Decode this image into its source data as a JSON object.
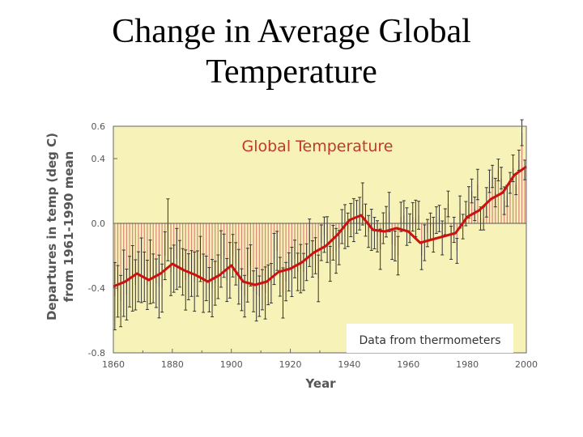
{
  "slide": {
    "title_line1": "Change in Average Global",
    "title_line2": "Temperature"
  },
  "colors": {
    "plot_bg": "#f7f2b8",
    "outer_bg": "#ffffff",
    "bar": "#d9837a",
    "smooth_line": "#cc1111",
    "error_bar": "#333333",
    "title_text": "#c0392b",
    "axis_text": "#555555"
  },
  "chart_data": {
    "type": "bar",
    "title": "Global Temperature",
    "xlabel": "Year",
    "ylabel_line1": "Departures in temp (deg C)",
    "ylabel_line2": "from 1961-1990 mean",
    "annotation": "Data from thermometers",
    "xlim": [
      1860,
      2000
    ],
    "ylim": [
      -0.8,
      0.6
    ],
    "x_ticks": [
      "1860",
      "1880",
      "1900",
      "1920",
      "1940",
      "1960",
      "1980",
      "2000"
    ],
    "y_ticks": [
      "0.6",
      "0.4",
      "0.0",
      "-0.4",
      "-0.8"
    ],
    "y_tick_values": [
      0.6,
      0.4,
      0.0,
      -0.4,
      -0.8
    ],
    "grid": false,
    "smoothed_series": {
      "name": "Smoothed trend",
      "x": [
        1860,
        1864,
        1868,
        1872,
        1876,
        1880,
        1884,
        1888,
        1892,
        1896,
        1900,
        1904,
        1908,
        1912,
        1916,
        1920,
        1924,
        1928,
        1932,
        1936,
        1940,
        1944,
        1948,
        1952,
        1956,
        1960,
        1964,
        1968,
        1972,
        1976,
        1980,
        1984,
        1988,
        1992,
        1996,
        2000
      ],
      "y": [
        -0.39,
        -0.36,
        -0.31,
        -0.35,
        -0.31,
        -0.25,
        -0.29,
        -0.32,
        -0.36,
        -0.32,
        -0.26,
        -0.36,
        -0.38,
        -0.36,
        -0.3,
        -0.28,
        -0.24,
        -0.18,
        -0.14,
        -0.07,
        0.02,
        0.05,
        -0.04,
        -0.05,
        -0.03,
        -0.05,
        -0.12,
        -0.1,
        -0.08,
        -0.06,
        0.04,
        0.08,
        0.15,
        0.19,
        0.3,
        0.35
      ]
    },
    "annual_series": {
      "name": "Annual departures",
      "x": [
        1860,
        1861,
        1862,
        1863,
        1864,
        1865,
        1866,
        1867,
        1868,
        1869,
        1870,
        1871,
        1872,
        1873,
        1874,
        1875,
        1876,
        1877,
        1878,
        1879,
        1880,
        1881,
        1882,
        1883,
        1884,
        1885,
        1886,
        1887,
        1888,
        1889,
        1890,
        1891,
        1892,
        1893,
        1894,
        1895,
        1896,
        1897,
        1898,
        1899,
        1900,
        1901,
        1902,
        1903,
        1904,
        1905,
        1906,
        1907,
        1908,
        1909,
        1910,
        1911,
        1912,
        1913,
        1914,
        1915,
        1916,
        1917,
        1918,
        1919,
        1920,
        1921,
        1922,
        1923,
        1924,
        1925,
        1926,
        1927,
        1928,
        1929,
        1930,
        1931,
        1932,
        1933,
        1934,
        1935,
        1936,
        1937,
        1938,
        1939,
        1940,
        1941,
        1942,
        1943,
        1944,
        1945,
        1946,
        1947,
        1948,
        1949,
        1950,
        1951,
        1952,
        1953,
        1954,
        1955,
        1956,
        1957,
        1958,
        1959,
        1960,
        1961,
        1962,
        1963,
        1964,
        1965,
        1966,
        1967,
        1968,
        1969,
        1970,
        1971,
        1972,
        1973,
        1974,
        1975,
        1976,
        1977,
        1978,
        1979,
        1980,
        1981,
        1982,
        1983,
        1984,
        1985,
        1986,
        1987,
        1988,
        1989,
        1990,
        1991,
        1992,
        1993,
        1994,
        1995,
        1996,
        1997,
        1998,
        1999
      ],
      "y": [
        -0.45,
        -0.42,
        -0.48,
        -0.37,
        -0.44,
        -0.36,
        -0.34,
        -0.38,
        -0.33,
        -0.29,
        -0.33,
        -0.38,
        -0.3,
        -0.34,
        -0.37,
        -0.39,
        -0.4,
        -0.2,
        -0.04,
        -0.3,
        -0.28,
        -0.22,
        -0.25,
        -0.3,
        -0.35,
        -0.33,
        -0.31,
        -0.36,
        -0.31,
        -0.22,
        -0.37,
        -0.34,
        -0.41,
        -0.4,
        -0.37,
        -0.33,
        -0.22,
        -0.2,
        -0.35,
        -0.29,
        -0.2,
        -0.25,
        -0.33,
        -0.41,
        -0.45,
        -0.32,
        -0.26,
        -0.42,
        -0.44,
        -0.45,
        -0.41,
        -0.43,
        -0.38,
        -0.37,
        -0.22,
        -0.17,
        -0.33,
        -0.43,
        -0.36,
        -0.3,
        -0.3,
        -0.22,
        -0.3,
        -0.28,
        -0.3,
        -0.24,
        -0.12,
        -0.22,
        -0.2,
        -0.34,
        -0.12,
        -0.07,
        -0.1,
        -0.25,
        -0.12,
        -0.17,
        -0.15,
        -0.02,
        -0.02,
        -0.04,
        0.02,
        0.02,
        0.04,
        0.06,
        0.12,
        0.02,
        -0.05,
        -0.04,
        -0.06,
        -0.08,
        -0.16,
        -0.03,
        0.01,
        0.07,
        -0.13,
        -0.14,
        -0.2,
        0.04,
        0.05,
        -0.02,
        -0.03,
        0.04,
        0.03,
        0.05,
        -0.2,
        -0.12,
        -0.06,
        -0.02,
        -0.07,
        0.02,
        0.03,
        -0.09,
        0.01,
        0.12,
        -0.12,
        -0.04,
        -0.17,
        0.07,
        -0.02,
        0.06,
        0.13,
        0.2,
        0.09,
        0.24,
        0.03,
        0.03,
        0.13,
        0.26,
        0.29,
        0.19,
        0.33,
        0.28,
        0.14,
        0.17,
        0.25,
        0.34,
        0.24,
        0.39,
        0.56,
        0.33
      ]
    }
  }
}
